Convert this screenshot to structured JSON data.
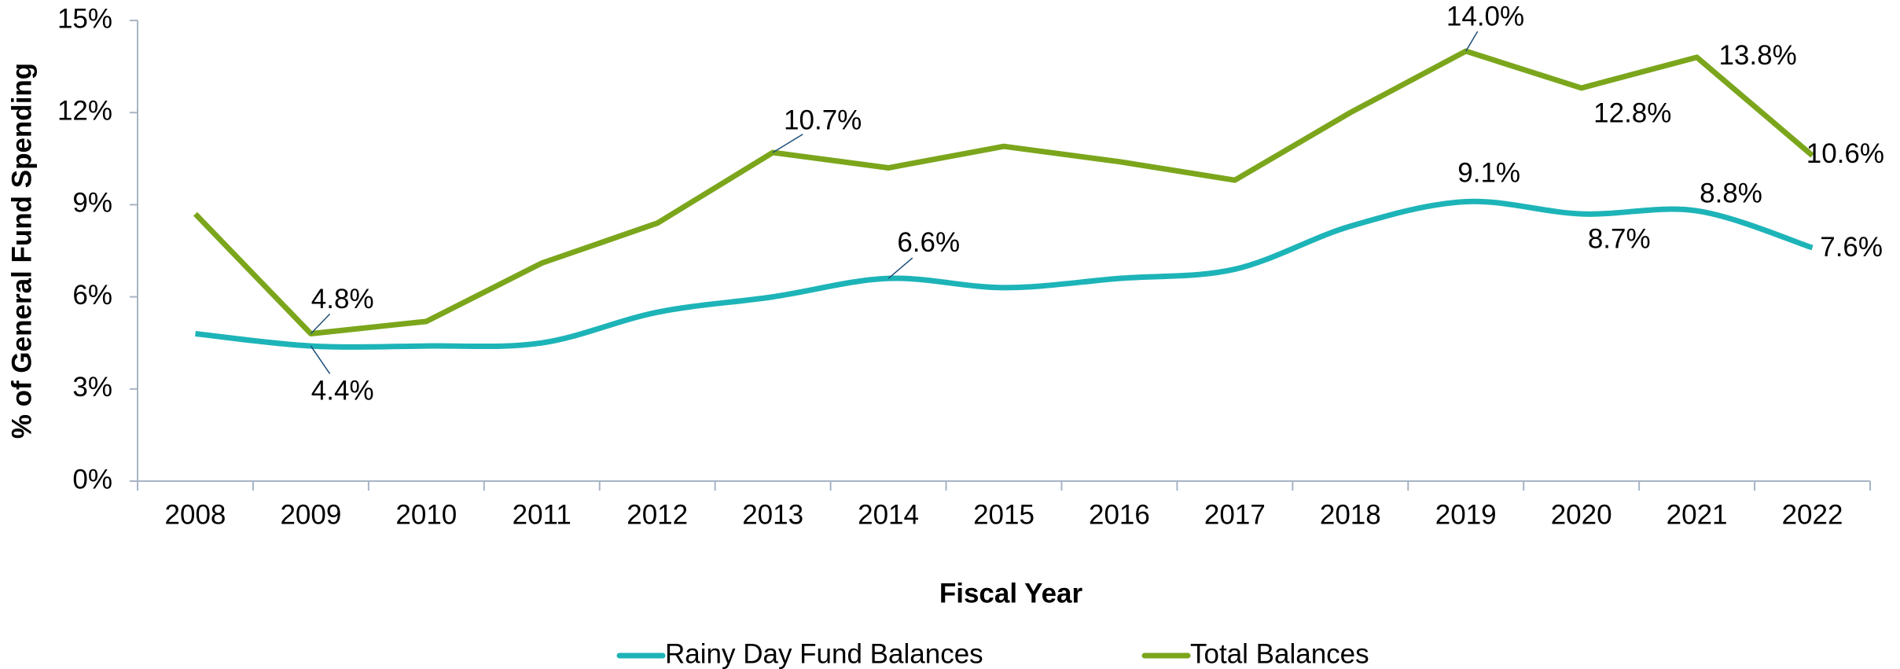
{
  "chart_data": {
    "type": "line",
    "x_label": "Fiscal Year",
    "y_label": "% of General Fund Spending",
    "categories": [
      "2008",
      "2009",
      "2010",
      "2011",
      "2012",
      "2013",
      "2014",
      "2015",
      "2016",
      "2017",
      "2018",
      "2019",
      "2020",
      "2021",
      "2022"
    ],
    "series": [
      {
        "name": "Rainy Day Fund Balances",
        "color": "#1db4b8",
        "values": [
          4.8,
          4.4,
          4.4,
          4.5,
          5.5,
          6.0,
          6.6,
          6.3,
          6.6,
          6.9,
          8.3,
          9.1,
          8.7,
          8.8,
          7.6
        ],
        "value_labels": [
          null,
          "4.4%",
          null,
          null,
          null,
          null,
          "6.6%",
          null,
          null,
          null,
          null,
          "9.1%",
          "8.7%",
          "8.8%",
          "7.6%"
        ]
      },
      {
        "name": "Total Balances",
        "color": "#7ba61c",
        "values": [
          8.7,
          4.8,
          5.2,
          7.1,
          8.4,
          10.7,
          10.2,
          10.9,
          10.4,
          9.8,
          12.0,
          14.0,
          12.8,
          13.8,
          10.6
        ],
        "value_labels": [
          null,
          "4.8%",
          null,
          null,
          null,
          "10.7%",
          null,
          null,
          null,
          null,
          null,
          "14.0%",
          "12.8%",
          "13.8%",
          "10.6%"
        ]
      }
    ],
    "ylim": [
      0,
      15
    ],
    "yticks": [
      {
        "value": 0,
        "label": "0%"
      },
      {
        "value": 3,
        "label": "3%"
      },
      {
        "value": 6,
        "label": "6%"
      },
      {
        "value": 9,
        "label": "9%"
      },
      {
        "value": 12,
        "label": "12%"
      },
      {
        "value": 15,
        "label": "15%"
      }
    ],
    "legend": "bottom",
    "grid": false
  }
}
